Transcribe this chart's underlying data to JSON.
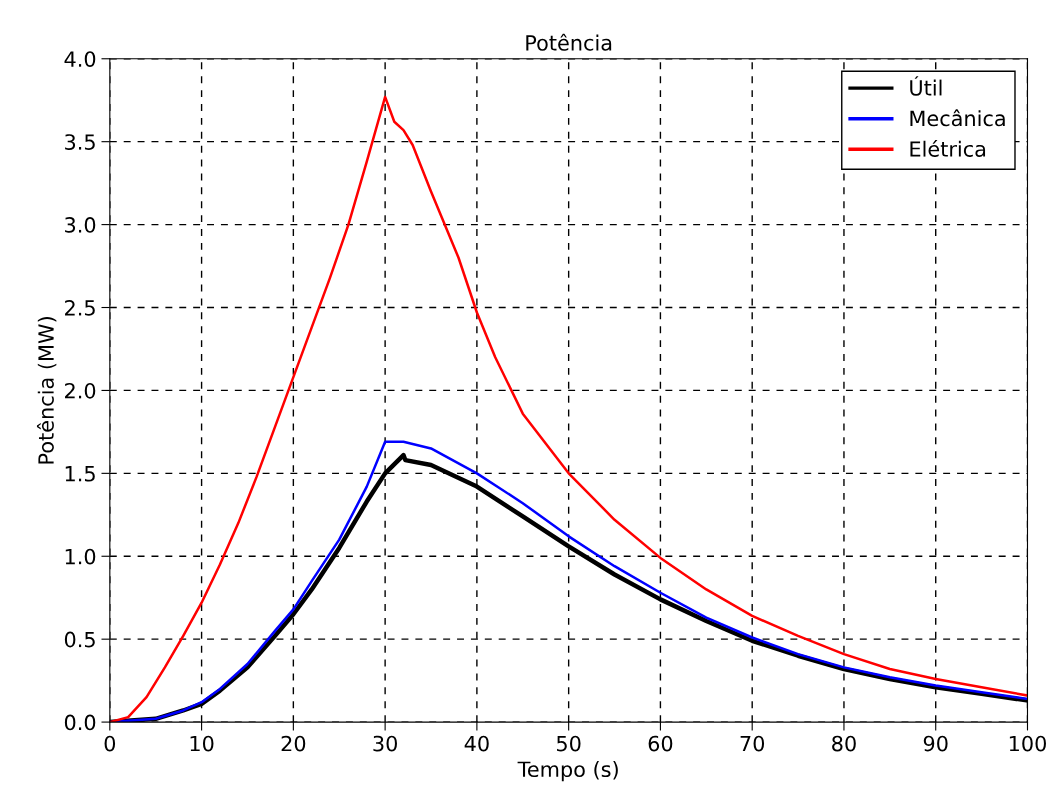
{
  "chart_data": {
    "type": "line",
    "title": "Potência",
    "xlabel": "Tempo (s)",
    "ylabel": "Potência (MW)",
    "xlim": [
      0,
      100
    ],
    "xticks": [
      0,
      10,
      20,
      30,
      40,
      50,
      60,
      70,
      80,
      90,
      100
    ],
    "ylim": [
      0,
      4.0
    ],
    "yticks": [
      {
        "value": 0,
        "label": "0.0"
      },
      0.5,
      {
        "value": 1,
        "label": "1.0"
      },
      1.5,
      {
        "value": 2,
        "label": "2.0"
      },
      2.5,
      {
        "value": 3,
        "label": "3.0"
      },
      3.5,
      {
        "value": 4,
        "label": "4.0"
      }
    ],
    "grid": true,
    "legend": "top right",
    "line_style": "solid",
    "marker": "none",
    "series": [
      {
        "name": "Útil",
        "color": "#000000",
        "x": [
          0,
          5,
          8,
          10,
          12,
          15,
          18,
          20,
          22,
          25,
          28,
          30,
          32,
          32.2,
          35,
          40,
          45,
          50,
          55,
          60,
          65,
          70,
          75,
          80,
          85,
          90,
          95,
          100
        ],
        "values": [
          0,
          0.02,
          0.07,
          0.11,
          0.19,
          0.33,
          0.52,
          0.65,
          0.8,
          1.05,
          1.33,
          1.5,
          1.61,
          1.58,
          1.55,
          1.42,
          1.24,
          1.06,
          0.89,
          0.74,
          0.61,
          0.49,
          0.4,
          0.32,
          0.26,
          0.21,
          0.17,
          0.13
        ]
      },
      {
        "name": "Mecânica",
        "color": "#0000ff",
        "x": [
          0,
          5,
          8,
          10,
          12,
          15,
          18,
          20,
          22,
          25,
          28,
          30,
          32,
          35,
          40,
          45,
          50,
          55,
          60,
          65,
          70,
          75,
          80,
          85,
          90,
          95,
          100
        ],
        "values": [
          0,
          0.02,
          0.07,
          0.12,
          0.2,
          0.35,
          0.55,
          0.68,
          0.85,
          1.1,
          1.42,
          1.69,
          1.69,
          1.65,
          1.5,
          1.32,
          1.12,
          0.94,
          0.78,
          0.63,
          0.51,
          0.41,
          0.33,
          0.27,
          0.22,
          0.18,
          0.14
        ]
      },
      {
        "name": "Elétrica",
        "color": "#ff0000",
        "x": [
          0,
          2,
          4,
          6,
          8,
          10,
          12,
          14,
          16,
          18,
          20,
          22,
          24,
          26,
          28,
          30,
          31,
          32,
          33,
          35,
          38,
          40,
          42,
          45,
          50,
          55,
          60,
          65,
          70,
          75,
          80,
          85,
          90,
          95,
          100
        ],
        "values": [
          0,
          0.03,
          0.15,
          0.33,
          0.52,
          0.72,
          0.95,
          1.2,
          1.48,
          1.78,
          2.08,
          2.38,
          2.68,
          3.0,
          3.38,
          3.77,
          3.62,
          3.57,
          3.48,
          3.2,
          2.8,
          2.47,
          2.2,
          1.86,
          1.5,
          1.22,
          0.99,
          0.8,
          0.64,
          0.52,
          0.41,
          0.32,
          0.26,
          0.21,
          0.16
        ]
      }
    ]
  }
}
